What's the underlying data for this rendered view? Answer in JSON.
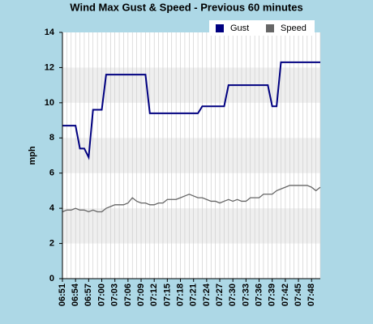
{
  "chart_data": {
    "type": "line",
    "title": "Wind Max Gust & Speed - Previous 60 minutes",
    "ylabel": "mph",
    "categories": [
      "06:51",
      null,
      null,
      "06:54",
      null,
      null,
      "06:57",
      null,
      null,
      "07:00",
      null,
      null,
      "07:03",
      null,
      null,
      "07:06",
      null,
      null,
      "07:09",
      null,
      null,
      "07:12",
      null,
      null,
      "07:15",
      null,
      null,
      "07:18",
      null,
      null,
      "07:21",
      null,
      null,
      "07:24",
      null,
      null,
      "07:27",
      null,
      null,
      "07:30",
      null,
      null,
      "07:33",
      null,
      null,
      "07:36",
      null,
      null,
      "07:39",
      null,
      null,
      "07:42",
      null,
      null,
      "07:45",
      null,
      null,
      "07:48",
      null,
      null
    ],
    "series": [
      {
        "name": "Gust",
        "color": "#000080",
        "values": [
          8.7,
          8.7,
          8.7,
          8.7,
          7.4,
          7.4,
          6.9,
          9.6,
          9.6,
          9.6,
          11.6,
          11.6,
          11.6,
          11.6,
          11.6,
          11.6,
          11.6,
          11.6,
          11.6,
          11.6,
          9.4,
          9.4,
          9.4,
          9.4,
          9.4,
          9.4,
          9.4,
          9.4,
          9.4,
          9.4,
          9.4,
          9.4,
          9.8,
          9.8,
          9.8,
          9.8,
          9.8,
          9.8,
          11.0,
          11.0,
          11.0,
          11.0,
          11.0,
          11.0,
          11.0,
          11.0,
          11.0,
          11.0,
          9.8,
          9.8,
          12.3,
          12.3,
          12.3,
          12.3,
          12.3,
          12.3,
          12.3,
          12.3,
          12.3,
          12.3
        ]
      },
      {
        "name": "Speed",
        "color": "#666666",
        "values": [
          3.8,
          3.9,
          3.9,
          4.0,
          3.9,
          3.9,
          3.8,
          3.9,
          3.8,
          3.8,
          4.0,
          4.1,
          4.2,
          4.2,
          4.2,
          4.3,
          4.6,
          4.4,
          4.3,
          4.3,
          4.2,
          4.2,
          4.3,
          4.3,
          4.5,
          4.5,
          4.5,
          4.6,
          4.7,
          4.8,
          4.7,
          4.6,
          4.6,
          4.5,
          4.4,
          4.4,
          4.3,
          4.4,
          4.5,
          4.4,
          4.5,
          4.4,
          4.4,
          4.6,
          4.6,
          4.6,
          4.8,
          4.8,
          4.8,
          5.0,
          5.1,
          5.2,
          5.3,
          5.3,
          5.3,
          5.3,
          5.3,
          5.2,
          5.0,
          5.2
        ]
      }
    ],
    "ylim": [
      0,
      14
    ],
    "yticks": [
      0,
      2,
      4,
      6,
      8,
      10,
      12,
      14
    ],
    "grid": true,
    "legend": "top-right"
  }
}
